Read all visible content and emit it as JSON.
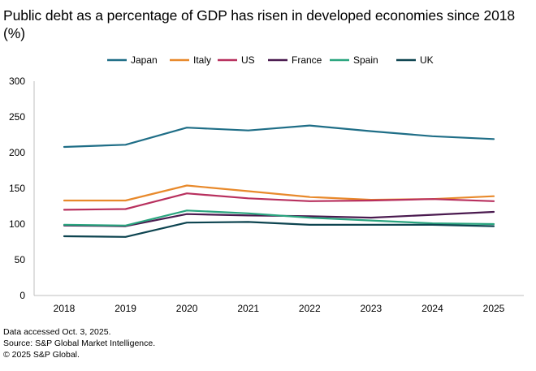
{
  "chart_data": {
    "type": "line",
    "title": "Public debt as a percentage of GDP has risen in developed economies since 2018 (%)",
    "xlabel": "",
    "ylabel": "",
    "categories": [
      "2018",
      "2019",
      "2020",
      "2021",
      "2022",
      "2023",
      "2024",
      "2025"
    ],
    "ylim": [
      0,
      300
    ],
    "yticks": [
      "0",
      "50",
      "100",
      "150",
      "200",
      "250",
      "300"
    ],
    "grid": false,
    "legend_position": "top",
    "series": [
      {
        "name": "Japan",
        "color": "#1f6e87",
        "values": [
          208,
          211,
          235,
          231,
          238,
          230,
          223,
          219
        ]
      },
      {
        "name": "Italy",
        "color": "#e8892b",
        "values": [
          133,
          133,
          154,
          146,
          138,
          134,
          135,
          139
        ]
      },
      {
        "name": "US",
        "color": "#b8305e",
        "values": [
          120,
          121,
          143,
          136,
          132,
          133,
          135,
          132
        ]
      },
      {
        "name": "France",
        "color": "#4a1a4f",
        "values": [
          98,
          97,
          114,
          112,
          111,
          109,
          113,
          117
        ]
      },
      {
        "name": "Spain",
        "color": "#2aa57f",
        "values": [
          99,
          98,
          119,
          115,
          109,
          105,
          101,
          100
        ]
      },
      {
        "name": "UK",
        "color": "#0d4450",
        "values": [
          83,
          82,
          102,
          103,
          99,
          99,
          99,
          97
        ]
      }
    ]
  },
  "footer": {
    "line1": "Data accessed Oct. 3, 2025.",
    "line2": "Source: S&P Global Market Intelligence.",
    "line3": "© 2025 S&P Global."
  }
}
